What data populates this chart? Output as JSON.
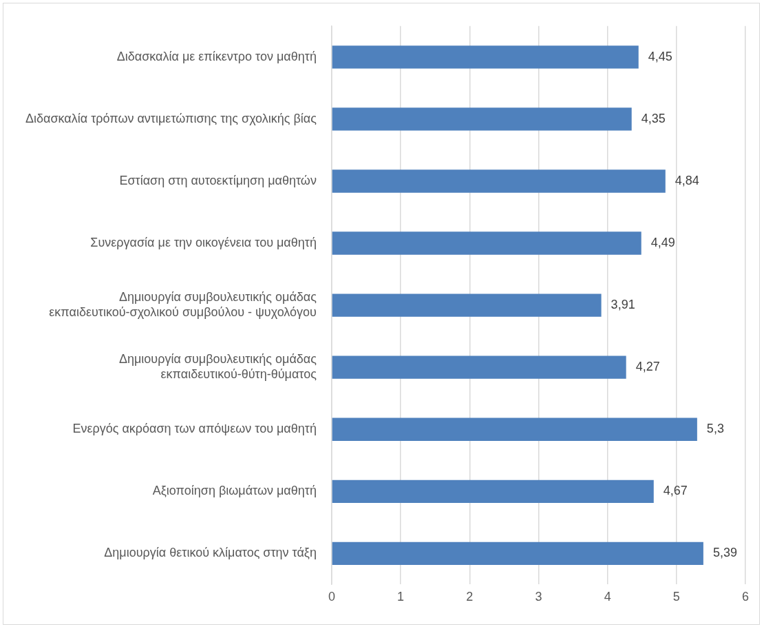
{
  "chart_data": {
    "type": "bar",
    "orientation": "horizontal",
    "categories": [
      "Διδασκαλία με επίκεντρο τον μαθητή",
      "Διδασκαλία τρόπων αντιμετώπισης της σχολικής βίας",
      "Εστίαση στη αυτοεκτίμηση μαθητών",
      "Συνεργασία με την οικογένεια του μαθητή",
      "Δημιουργία συμβουλευτικής ομάδας εκπαιδευτικού-σχολικού συμβούλου - ψυχολόγου",
      "Δημιουργία συμβουλευτικής ομάδας εκπαιδευτικού-θύτη-θύματος",
      "Ενεργός ακρόαση των απόψεων του μαθητή",
      "Αξιοποίηση βιωμάτων μαθητή",
      "Δημιουργία θετικού κλίματος στην τάξη"
    ],
    "values": [
      4.45,
      4.35,
      4.84,
      4.49,
      3.91,
      4.27,
      5.3,
      4.67,
      5.39
    ],
    "value_labels": [
      "4,45",
      "4,35",
      "4,84",
      "4,49",
      "3,91",
      "4,27",
      "5,3",
      "4,67",
      "5,39"
    ],
    "color": "#4f81bd",
    "xlim": [
      0,
      6
    ],
    "xticks": [
      0,
      1,
      2,
      3,
      4,
      5,
      6
    ],
    "grid": "x",
    "legend": false
  }
}
